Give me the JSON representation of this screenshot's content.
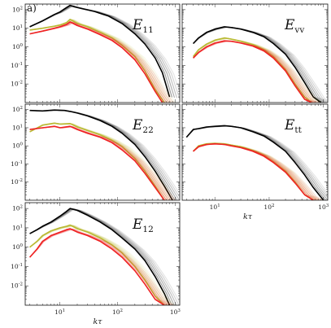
{
  "figure_tag": "a)",
  "colors": {
    "black_series": "#000000",
    "yellow_series": "#b9b932",
    "red_series": "#ee2222"
  },
  "chart_data": [
    {
      "type": "line",
      "panel": "E11",
      "title": {
        "symbol": "E",
        "sub": "11"
      },
      "xscale": "log",
      "yscale": "log",
      "xlim": [
        2.5,
        1200
      ],
      "ylim": [
        0.001,
        200
      ],
      "xticks": [],
      "yticks": [
        "10^2",
        "10^1",
        "10^0",
        "10^-1",
        "10^-2"
      ],
      "xlabel": "",
      "series": [
        {
          "color": "black",
          "x": [
            3,
            5,
            8,
            10,
            12,
            15,
            18,
            25,
            40,
            70,
            120,
            200,
            300,
            450,
            600,
            800
          ],
          "y": [
            12,
            25,
            55,
            75,
            110,
            170,
            140,
            110,
            80,
            45,
            18,
            5,
            1.4,
            0.25,
            0.04,
            0.002
          ]
        },
        {
          "color": "yellow",
          "x": [
            3,
            5,
            8,
            10,
            13,
            15,
            20,
            30,
            50,
            80,
            120,
            200,
            300,
            450,
            650
          ],
          "y": [
            8,
            10,
            13,
            15,
            20,
            30,
            18,
            12,
            6,
            3,
            1.2,
            0.3,
            0.05,
            0.005,
            0.001
          ]
        },
        {
          "color": "red",
          "x": [
            3,
            5,
            8,
            10,
            13,
            15,
            20,
            30,
            50,
            80,
            120,
            200,
            300,
            450,
            600
          ],
          "y": [
            5,
            7,
            10,
            12,
            16,
            22,
            14,
            9,
            4.5,
            2.2,
            0.9,
            0.2,
            0.035,
            0.004,
            0.001
          ]
        }
      ]
    },
    {
      "type": "line",
      "panel": "Evv",
      "title": {
        "symbol": "E",
        "sub": "vv"
      },
      "xscale": "log",
      "yscale": "log",
      "xlim": [
        2.5,
        1200
      ],
      "ylim": [
        0.001,
        200
      ],
      "xticks": [],
      "yticks": [],
      "xlabel": "",
      "series": [
        {
          "color": "black",
          "x": [
            4,
            5,
            7,
            10,
            15,
            20,
            30,
            50,
            80,
            120,
            200,
            300,
            450,
            650,
            900
          ],
          "y": [
            1.5,
            3,
            6,
            9,
            12,
            11,
            9,
            6,
            3.5,
            1.5,
            0.4,
            0.08,
            0.012,
            0.002,
            0.001
          ]
        },
        {
          "color": "yellow",
          "x": [
            4,
            5,
            7,
            10,
            15,
            20,
            30,
            50,
            80,
            120,
            200,
            300,
            450,
            600
          ],
          "y": [
            0.3,
            0.7,
            1.4,
            2.3,
            3,
            2.6,
            2,
            1.3,
            0.7,
            0.3,
            0.06,
            0.01,
            0.002,
            0.001
          ]
        },
        {
          "color": "red",
          "x": [
            4,
            5,
            7,
            10,
            15,
            20,
            30,
            50,
            80,
            120,
            200,
            300,
            450,
            600
          ],
          "y": [
            0.25,
            0.5,
            1,
            1.6,
            2.1,
            2,
            1.6,
            1.1,
            0.6,
            0.25,
            0.05,
            0.008,
            0.0015,
            0.001
          ]
        }
      ]
    },
    {
      "type": "line",
      "panel": "E22",
      "title": {
        "symbol": "E",
        "sub": "22"
      },
      "xscale": "log",
      "yscale": "log",
      "xlim": [
        2.5,
        1200
      ],
      "ylim": [
        0.001,
        200
      ],
      "xticks": [],
      "yticks": [
        "10^2",
        "10^1",
        "10^0",
        "10^-1",
        "10^-2"
      ],
      "xlabel": "",
      "series": [
        {
          "color": "black",
          "x": [
            3,
            5,
            8,
            12,
            15,
            20,
            30,
            50,
            80,
            120,
            200,
            300,
            450,
            650,
            900
          ],
          "y": [
            90,
            85,
            95,
            90,
            80,
            65,
            45,
            25,
            12,
            5,
            1.2,
            0.25,
            0.04,
            0.006,
            0.001
          ]
        },
        {
          "color": "yellow",
          "x": [
            3,
            5,
            8,
            10,
            15,
            20,
            30,
            50,
            80,
            120,
            200,
            300,
            450,
            650
          ],
          "y": [
            6,
            14,
            18,
            16,
            17,
            11,
            7,
            4,
            2,
            0.9,
            0.2,
            0.04,
            0.006,
            0.001
          ]
        },
        {
          "color": "red",
          "x": [
            3,
            5,
            8,
            10,
            15,
            20,
            30,
            50,
            80,
            120,
            200,
            300,
            450,
            650
          ],
          "y": [
            8,
            10,
            12,
            10,
            12,
            8,
            5,
            3,
            1.5,
            0.6,
            0.15,
            0.03,
            0.005,
            0.001
          ]
        }
      ]
    },
    {
      "type": "line",
      "panel": "Ett",
      "title": {
        "symbol": "E",
        "sub": "tt"
      },
      "xscale": "log",
      "yscale": "log",
      "xlim": [
        2.5,
        1200
      ],
      "ylim": [
        0.001,
        200
      ],
      "xticks": [
        "10^1",
        "10^2",
        "10^3"
      ],
      "yticks": [],
      "xlabel": "kτ",
      "series": [
        {
          "color": "black",
          "x": [
            3,
            4,
            5,
            7,
            10,
            15,
            20,
            30,
            50,
            80,
            120,
            200,
            300,
            450,
            650,
            1000
          ],
          "y": [
            3,
            8,
            9,
            11,
            12,
            13,
            12,
            10,
            6,
            3.5,
            1.6,
            0.5,
            0.12,
            0.025,
            0.005,
            0.001
          ]
        },
        {
          "color": "yellow",
          "x": [
            4,
            5,
            7,
            10,
            15,
            20,
            30,
            50,
            80,
            120,
            200,
            300,
            450,
            650
          ],
          "y": [
            0.5,
            1,
            1.3,
            1.4,
            1.3,
            1.1,
            0.9,
            0.55,
            0.3,
            0.13,
            0.04,
            0.01,
            0.002,
            0.001
          ]
        },
        {
          "color": "red",
          "x": [
            4,
            5,
            7,
            10,
            15,
            20,
            30,
            50,
            80,
            120,
            200,
            300,
            450,
            650
          ],
          "y": [
            0.5,
            0.9,
            1.2,
            1.3,
            1.2,
            1,
            0.8,
            0.5,
            0.27,
            0.12,
            0.035,
            0.009,
            0.002,
            0.001
          ]
        }
      ]
    },
    {
      "type": "line",
      "panel": "E12",
      "title": {
        "symbol": "E",
        "sub": "12"
      },
      "xscale": "log",
      "yscale": "log",
      "xlim": [
        2.5,
        1200
      ],
      "ylim": [
        0.001,
        200
      ],
      "xticks": [
        "10^1",
        "10^2",
        "10^3"
      ],
      "yticks": [
        "10^2",
        "10^1",
        "10^0",
        "10^-1",
        "10^-2"
      ],
      "xlabel": "kτ",
      "series": [
        {
          "color": "black",
          "x": [
            3,
            4,
            5,
            7,
            10,
            13,
            15,
            20,
            30,
            50,
            80,
            120,
            200,
            300,
            450,
            650,
            800
          ],
          "y": [
            5,
            8,
            12,
            20,
            40,
            70,
            100,
            80,
            45,
            20,
            8,
            3,
            0.8,
            0.2,
            0.03,
            0.004,
            0.001
          ]
        },
        {
          "color": "yellow",
          "x": [
            3,
            4,
            5,
            7,
            10,
            13,
            15,
            20,
            30,
            50,
            80,
            120,
            200,
            300,
            450,
            650
          ],
          "y": [
            1,
            2,
            4,
            7,
            10,
            12,
            14,
            9,
            6,
            3,
            1.3,
            0.5,
            0.1,
            0.02,
            0.003,
            0.001
          ]
        },
        {
          "color": "red",
          "x": [
            3,
            4,
            5,
            7,
            10,
            13,
            15,
            20,
            30,
            50,
            80,
            120,
            200,
            300,
            450,
            650
          ],
          "y": [
            0.3,
            0.8,
            2,
            4,
            6,
            8,
            9,
            6,
            4,
            2,
            0.8,
            0.3,
            0.06,
            0.012,
            0.002,
            0.001
          ]
        }
      ]
    }
  ]
}
